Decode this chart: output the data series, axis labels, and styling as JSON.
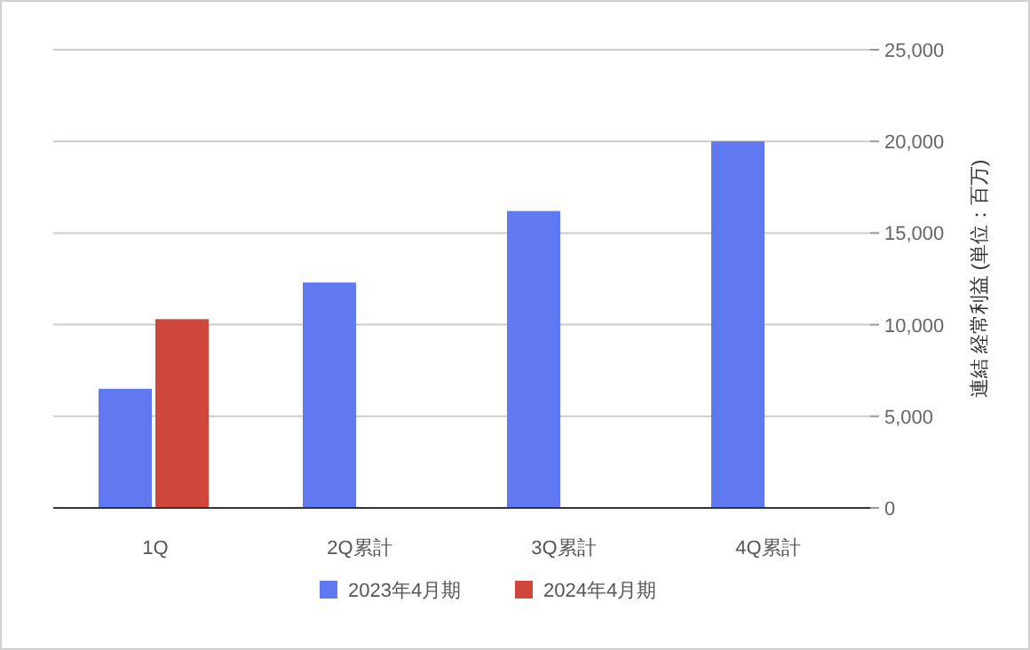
{
  "chart_data": {
    "type": "bar",
    "categories": [
      "1Q",
      "2Q累計",
      "3Q累計",
      "4Q累計"
    ],
    "series": [
      {
        "name": "2023年4月期",
        "color": "#6079f0",
        "values": [
          6500,
          12300,
          16200,
          20000
        ]
      },
      {
        "name": "2024年4月期",
        "color": "#cf473b",
        "values": [
          10300,
          null,
          null,
          null
        ]
      }
    ],
    "ylabel": "連結 経常利益 (単位：百万)",
    "ylim": [
      0,
      25000
    ],
    "yticks": [
      0,
      {
        "value": 5000,
        "label": "5,000"
      },
      {
        "value": 10000,
        "label": "10,000"
      },
      {
        "value": 15000,
        "label": "15,000"
      },
      {
        "value": 20000,
        "label": "20,000"
      },
      {
        "value": 25000,
        "label": "25,000"
      }
    ],
    "grid": "y",
    "legend": "bottom"
  }
}
